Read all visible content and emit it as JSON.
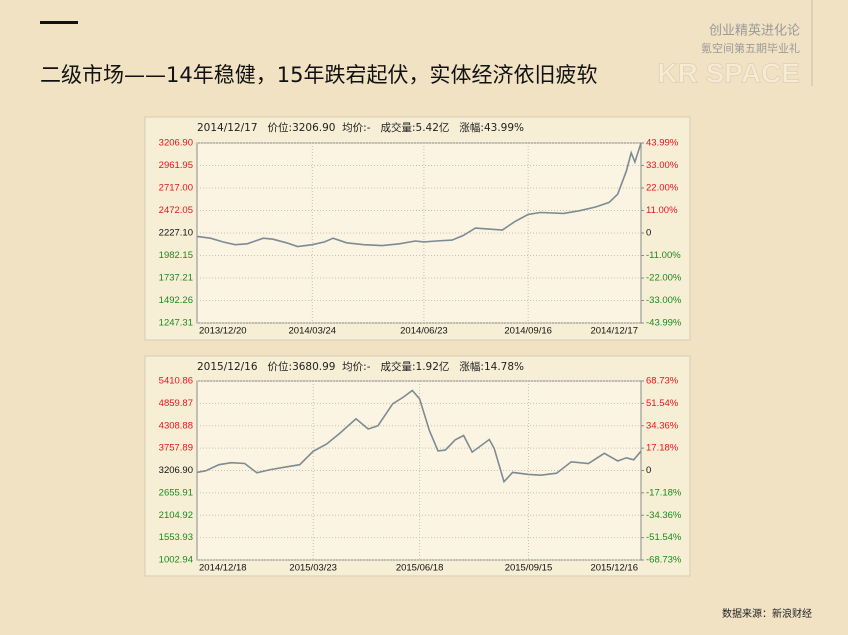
{
  "header": {
    "brand": "创业精英进化论",
    "event": "氪空间第五期毕业礼",
    "logo": "KR SPACE"
  },
  "title": "二级市场——14年稳健，15年跌宕起伏，实体经济依旧疲软",
  "source": "数据来源：新浪财经",
  "chart_data": [
    {
      "type": "line",
      "info": "2014/12/17   价位:3206.90  均价:-   成交量:5.42亿   涨幅:43.99%",
      "color": "#7d8b94",
      "up_color": "#e8141c",
      "down_color": "#1b8a1b",
      "grid": true,
      "xlim": [
        "2013/12/20",
        "2014/12/17"
      ],
      "xticks": [
        "2013/12/20",
        "2014/03/24",
        "2014/06/23",
        "2014/09/16",
        "2014/12/17"
      ],
      "ylim": [
        1247.31,
        3206.9
      ],
      "yticks": [
        {
          "value": 3206.9,
          "label": "3206.90"
        },
        2961.95,
        {
          "value": 2717,
          "label": "2717.00"
        },
        2472.05,
        {
          "value": 2227.1,
          "label": "2227.10"
        },
        1982.15,
        1737.21,
        1492.26,
        1247.31
      ],
      "y2lim": [
        -43.99,
        43.99
      ],
      "y2ticks": [
        {
          "value": 43.99,
          "label": "43.99%"
        },
        {
          "value": 33,
          "label": "33.00%"
        },
        {
          "value": 22,
          "label": "22.00%"
        },
        {
          "value": 11,
          "label": "11.00%"
        },
        0,
        {
          "value": -11,
          "label": "-11.00%"
        },
        {
          "value": -22,
          "label": "-22.00%"
        },
        {
          "value": -33,
          "label": "-33.00%"
        },
        {
          "value": -43.99,
          "label": "-43.99%"
        }
      ],
      "x": [
        "2013/12/20",
        "2013/12/31",
        "2014/01/10",
        "2014/01/20",
        "2014/01/30",
        "2014/02/12",
        "2014/02/20",
        "2014/03/03",
        "2014/03/12",
        "2014/03/24",
        "2014/04/03",
        "2014/04/10",
        "2014/04/21",
        "2014/05/05",
        "2014/05/20",
        "2014/06/03",
        "2014/06/16",
        "2014/06/23",
        "2014/07/03",
        "2014/07/16",
        "2014/07/25",
        "2014/08/04",
        "2014/08/15",
        "2014/08/26",
        "2014/09/05",
        "2014/09/16",
        "2014/09/26",
        "2014/10/15",
        "2014/10/28",
        "2014/11/10",
        "2014/11/21",
        "2014/11/28",
        "2014/12/05",
        "2014/12/09",
        "2014/12/12",
        "2014/12/17"
      ],
      "values": [
        2190,
        2170,
        2130,
        2100,
        2110,
        2170,
        2160,
        2120,
        2080,
        2100,
        2130,
        2170,
        2120,
        2100,
        2090,
        2110,
        2140,
        2130,
        2140,
        2150,
        2200,
        2280,
        2270,
        2260,
        2350,
        2430,
        2450,
        2440,
        2470,
        2510,
        2560,
        2650,
        2900,
        3100,
        3000,
        3206.9
      ]
    },
    {
      "type": "line",
      "info": "2015/12/16   价位:3680.99  均价:-   成交量:1.92亿   涨幅:14.78%",
      "color": "#7d8b94",
      "up_color": "#e8141c",
      "down_color": "#1b8a1b",
      "grid": true,
      "xlim": [
        "2014/12/18",
        "2015/12/16"
      ],
      "xticks": [
        "2014/12/18",
        "2015/03/23",
        "2015/06/18",
        "2015/09/15",
        "2015/12/16"
      ],
      "ylim": [
        1002.94,
        5410.86
      ],
      "yticks": [
        5410.86,
        4859.87,
        4308.88,
        3757.89,
        {
          "value": 3206.9,
          "label": "3206.90"
        },
        2655.91,
        2104.92,
        1553.93,
        1002.94
      ],
      "y2lim": [
        -68.73,
        68.73
      ],
      "y2ticks": [
        {
          "value": 68.73,
          "label": "68.73%"
        },
        {
          "value": 51.54,
          "label": "51.54%"
        },
        {
          "value": 34.36,
          "label": "34.36%"
        },
        {
          "value": 17.18,
          "label": "17.18%"
        },
        0,
        {
          "value": -17.18,
          "label": "-17.18%"
        },
        {
          "value": -34.36,
          "label": "-34.36%"
        },
        {
          "value": -51.54,
          "label": "-51.54%"
        },
        {
          "value": -68.73,
          "label": "-68.73%"
        }
      ],
      "x": [
        "2014/12/18",
        "2014/12/25",
        "2015/01/05",
        "2015/01/15",
        "2015/01/26",
        "2015/02/05",
        "2015/02/16",
        "2015/03/02",
        "2015/03/12",
        "2015/03/23",
        "2015/04/03",
        "2015/04/14",
        "2015/04/27",
        "2015/05/07",
        "2015/05/15",
        "2015/05/27",
        "2015/06/05",
        "2015/06/12",
        "2015/06/18",
        "2015/06/26",
        "2015/07/03",
        "2015/07/09",
        "2015/07/17",
        "2015/07/24",
        "2015/07/31",
        "2015/08/14",
        "2015/08/18",
        "2015/08/26",
        "2015/09/02",
        "2015/09/15",
        "2015/09/25",
        "2015/10/08",
        "2015/10/20",
        "2015/11/03",
        "2015/11/16",
        "2015/11/27",
        "2015/12/04",
        "2015/12/10",
        "2015/12/16"
      ],
      "values": [
        3160,
        3200,
        3350,
        3400,
        3380,
        3150,
        3230,
        3300,
        3350,
        3680,
        3860,
        4130,
        4480,
        4230,
        4310,
        4850,
        5020,
        5178,
        4970,
        4190,
        3690,
        3710,
        3960,
        4070,
        3660,
        3970,
        3750,
        2930,
        3160,
        3110,
        3090,
        3140,
        3420,
        3380,
        3630,
        3440,
        3520,
        3470,
        3680.99
      ]
    }
  ]
}
